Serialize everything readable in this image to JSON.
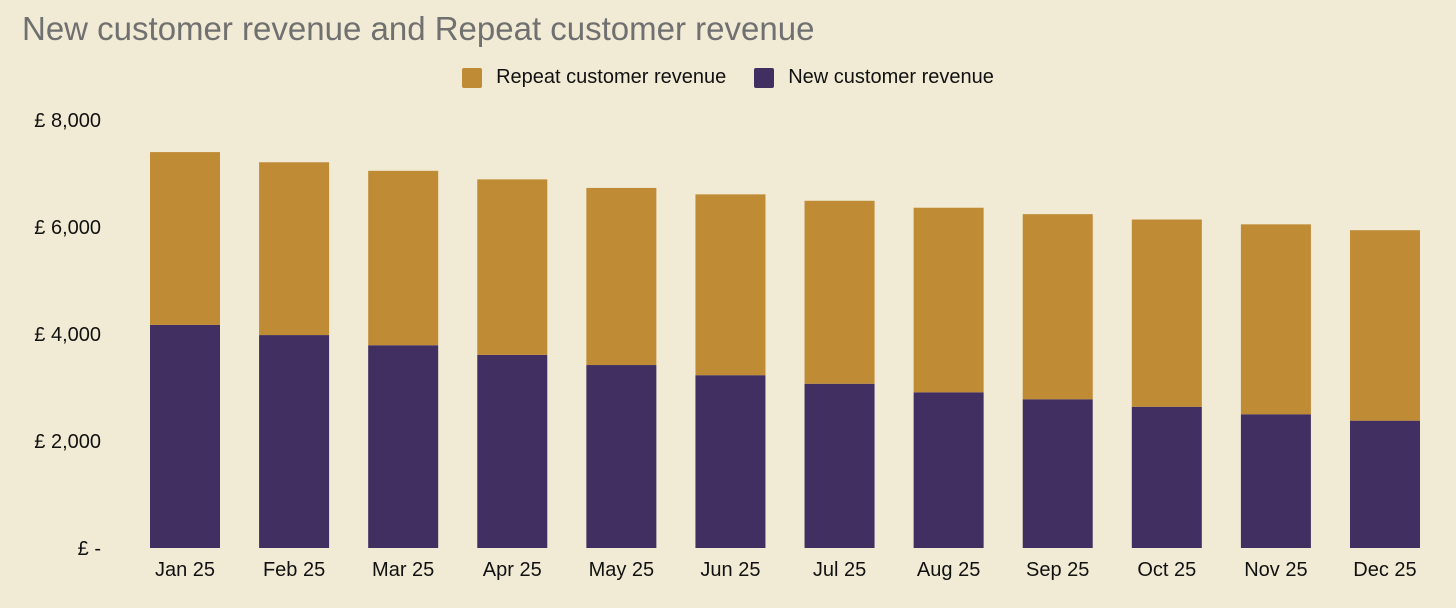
{
  "chart_data": {
    "type": "bar",
    "stacked": true,
    "title": "New customer revenue and Repeat customer revenue",
    "categories": [
      "Jan 25",
      "Feb 25",
      "Mar 25",
      "Apr 25",
      "May 25",
      "Jun 25",
      "Jul 25",
      "Aug 25",
      "Sep 25",
      "Oct 25",
      "Nov 25",
      "Dec 25"
    ],
    "series": [
      {
        "name": "New customer revenue",
        "color": "#412f62",
        "values": [
          4170,
          3980,
          3790,
          3610,
          3420,
          3230,
          3070,
          2910,
          2780,
          2640,
          2500,
          2380
        ]
      },
      {
        "name": "Repeat customer revenue",
        "color": "#bf8b35",
        "values": [
          3230,
          3230,
          3260,
          3280,
          3310,
          3380,
          3420,
          3450,
          3460,
          3500,
          3550,
          3560
        ]
      }
    ],
    "legend_order": [
      1,
      0
    ],
    "legend_position": "top-center",
    "ylim": [
      0,
      8000
    ],
    "yticks": [
      0,
      2000,
      4000,
      6000,
      8000
    ],
    "ytick_labels": [
      "£ -",
      "£ 2,000",
      "£ 4,000",
      "£ 6,000",
      "£ 8,000"
    ],
    "grid": false,
    "background": "#f1ead4"
  }
}
